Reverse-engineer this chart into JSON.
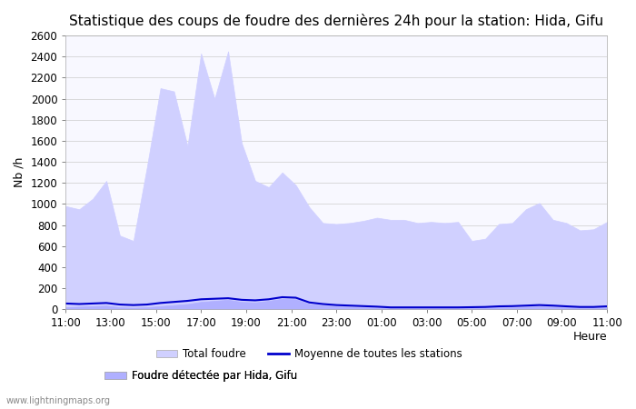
{
  "title": "Statistique des coups de foudre des dernières 24h pour la station: Hida, Gifu",
  "ylabel": "Nb /h",
  "xlabel": "Heure",
  "watermark": "www.lightningmaps.org",
  "ylim": [
    0,
    2600
  ],
  "yticks": [
    0,
    200,
    400,
    600,
    800,
    1000,
    1200,
    1400,
    1600,
    1800,
    2000,
    2200,
    2400,
    2600
  ],
  "xtick_labels": [
    "11:00",
    "13:00",
    "15:00",
    "17:00",
    "19:00",
    "21:00",
    "23:00",
    "01:00",
    "03:00",
    "05:00",
    "07:00",
    "09:00",
    "11:00"
  ],
  "bg_color": "#f8f8ff",
  "fill_total_color": "#d0d0ff",
  "fill_local_color": "#b0b0ff",
  "line_avg_color": "#0000cc",
  "total_foudre": [
    980,
    950,
    1050,
    1220,
    700,
    650,
    1350,
    2100,
    2070,
    1550,
    2430,
    2000,
    2450,
    1580,
    1220,
    1160,
    1300,
    1180,
    970,
    820,
    810,
    820,
    840,
    870,
    850,
    850,
    820,
    830,
    820,
    830,
    650,
    670,
    810,
    820,
    950,
    1010,
    850,
    820,
    750,
    760,
    830
  ],
  "local_foudre": [
    20,
    25,
    30,
    35,
    20,
    15,
    20,
    30,
    40,
    50,
    70,
    80,
    90,
    70,
    65,
    80,
    100,
    95,
    50,
    40,
    30,
    25,
    20,
    15,
    10,
    10,
    10,
    10,
    10,
    10,
    15,
    15,
    20,
    20,
    25,
    30,
    25,
    20,
    15,
    15,
    20
  ],
  "avg_line": [
    55,
    50,
    55,
    60,
    45,
    40,
    45,
    60,
    70,
    80,
    95,
    100,
    105,
    90,
    85,
    95,
    115,
    110,
    65,
    50,
    40,
    35,
    30,
    25,
    18,
    18,
    18,
    18,
    18,
    18,
    20,
    22,
    28,
    30,
    35,
    40,
    35,
    28,
    22,
    22,
    28
  ],
  "legend_total_label": "Total foudre",
  "legend_avg_label": "Moyenne de toutes les stations",
  "legend_local_label": "Foudre détectée par Hida, Gifu",
  "title_fontsize": 11,
  "tick_fontsize": 8.5,
  "label_fontsize": 9
}
